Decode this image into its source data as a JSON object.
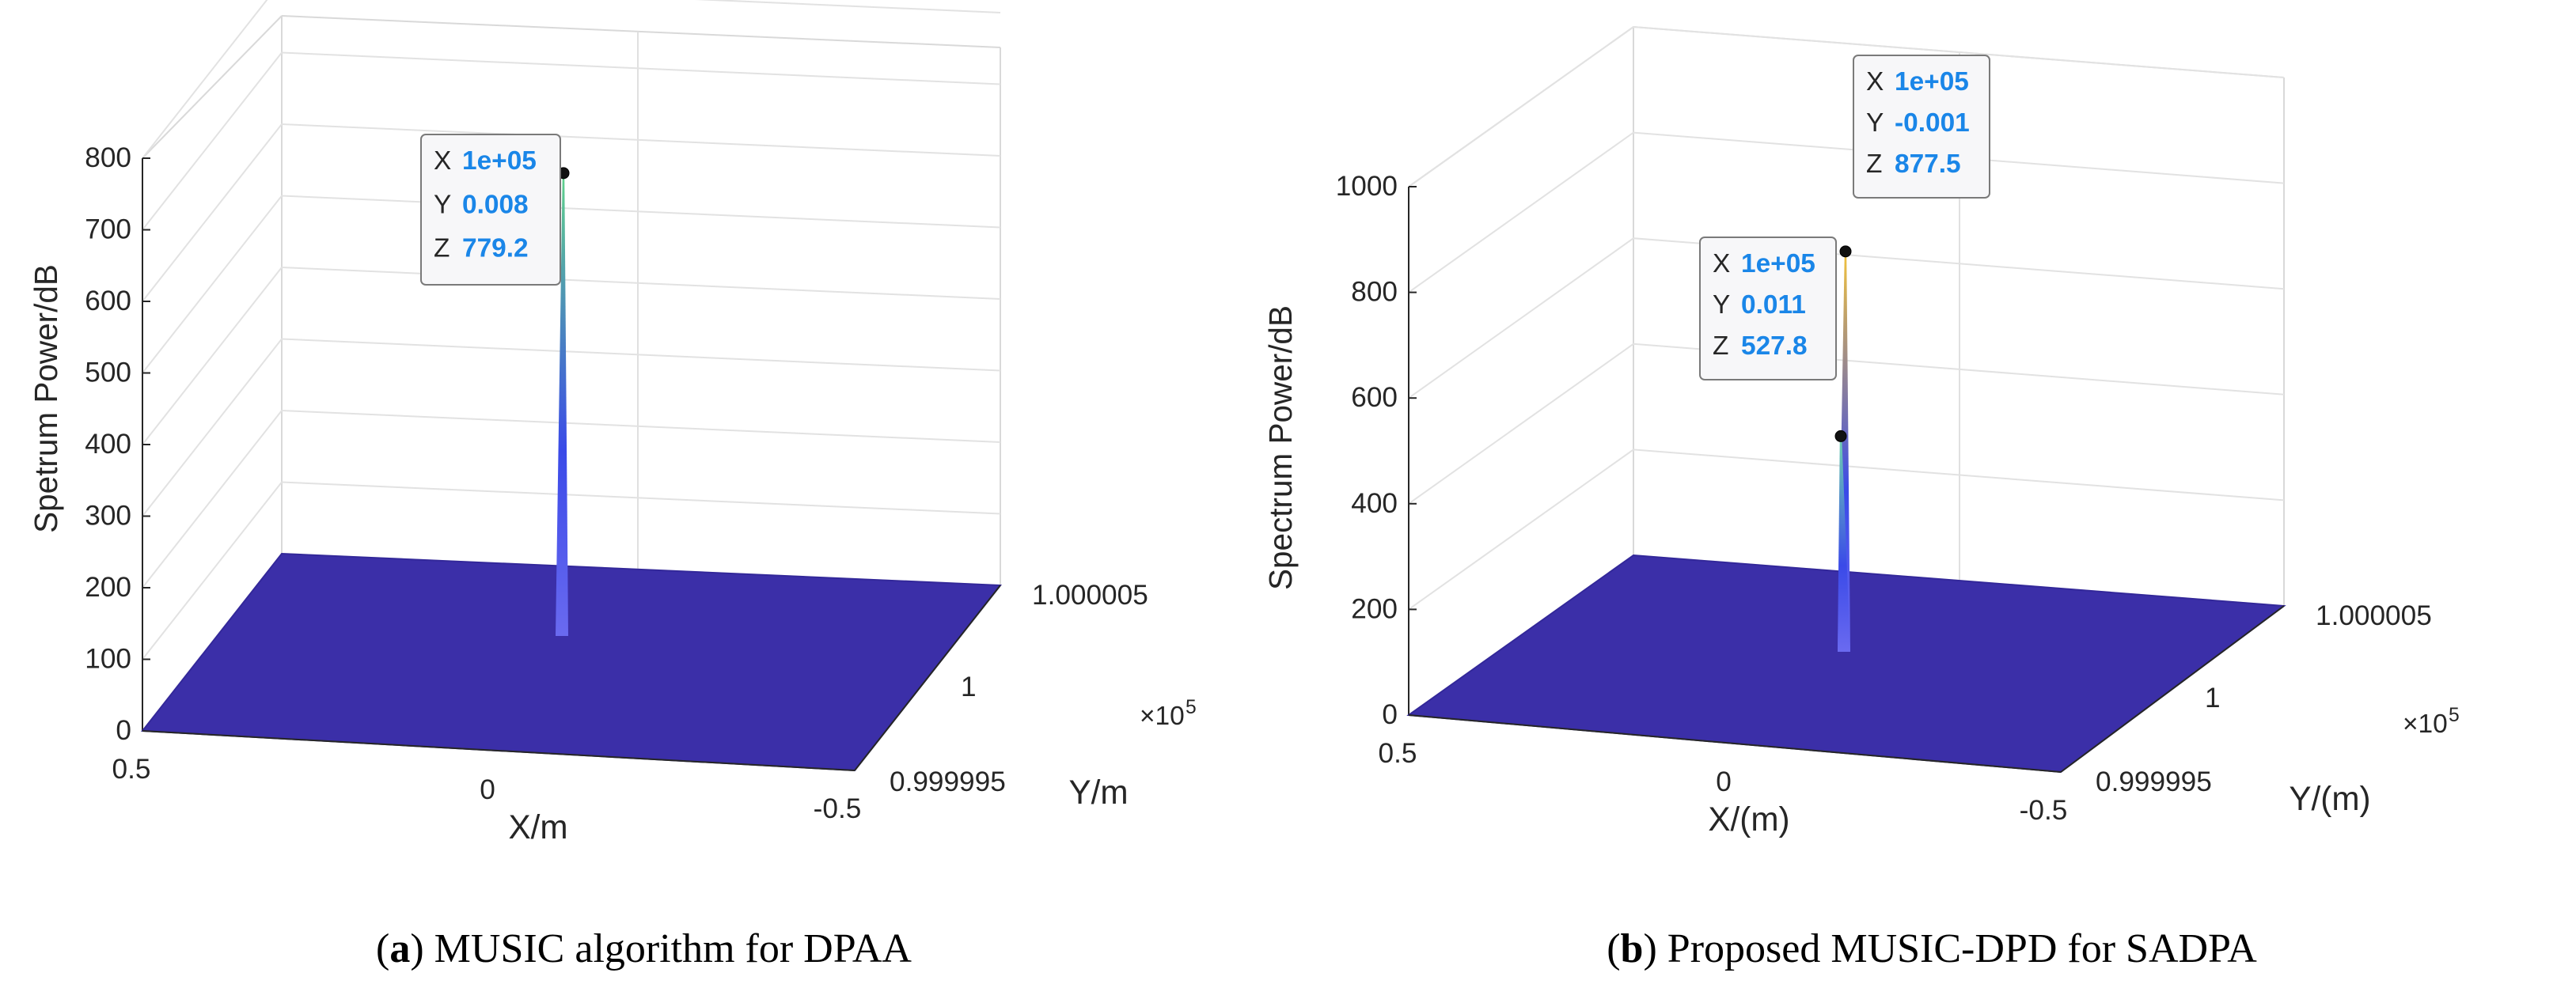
{
  "chart_data": [
    {
      "type": "surface3d",
      "panel_letter": "a",
      "caption_text": "MUSIC algorithm for DPAA",
      "zlabel": "Spetrum Power/dB",
      "xlabel": "X/m",
      "ylabel": "Y/m",
      "z_ticks": [
        "0",
        "100",
        "200",
        "300",
        "400",
        "500",
        "600",
        "700",
        "800"
      ],
      "z_lim": [
        0,
        800
      ],
      "x_ticks": [
        "0.5",
        "0",
        "-0.5"
      ],
      "y_ticks": [
        "0.999995",
        "1",
        "1.000005"
      ],
      "y_multiplier": "×10",
      "y_multiplier_exp": "5",
      "surface_color": "#3b2fa8",
      "peaks": [
        {
          "z": 779.2,
          "x_label": "1e+05",
          "y_label": "0.008",
          "z_label": "779.2",
          "color_top": "#5fd28a",
          "color_bottom": "#3a4ae8"
        }
      ]
    },
    {
      "type": "surface3d",
      "panel_letter": "b",
      "caption_text": "Proposed MUSIC-DPD for SADPA",
      "zlabel": "Spectrum Power/dB",
      "xlabel": "X/(m)",
      "ylabel": "Y/(m)",
      "z_ticks": [
        "0",
        "200",
        "400",
        "600",
        "800",
        "1000"
      ],
      "z_lim": [
        0,
        1000
      ],
      "x_ticks": [
        "0.5",
        "0",
        "-0.5"
      ],
      "y_ticks": [
        "0.999995",
        "1",
        "1.000005"
      ],
      "y_multiplier": "×10",
      "y_multiplier_exp": "5",
      "surface_color": "#3b2fa8",
      "peaks": [
        {
          "z": 877.5,
          "x_label": "1e+05",
          "y_label": "-0.001",
          "z_label": "877.5",
          "color_top": "#f2c23a",
          "color_bottom": "#3a4ae8"
        },
        {
          "z": 527.8,
          "x_label": "1e+05",
          "y_label": "0.011",
          "z_label": "527.8",
          "color_top": "#6fd3b0",
          "color_bottom": "#3a4ae8"
        }
      ]
    }
  ]
}
